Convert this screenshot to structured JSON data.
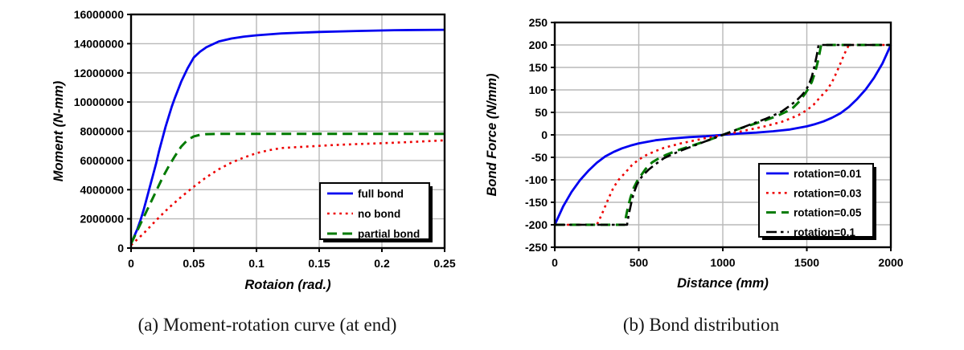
{
  "figure": {
    "captions": {
      "left": "(a) Moment-rotation curve (at end)",
      "right": "(b) Bond distribution"
    }
  },
  "colors": {
    "blue": "#0000f0",
    "red": "#ee0000",
    "green": "#007a00",
    "black": "#000000",
    "gridline": "#b8b8b8",
    "frame": "#000000",
    "background": "#ffffff"
  },
  "chart_data": [
    {
      "type": "line",
      "title": "",
      "xlabel": "Rotaion (rad.)",
      "ylabel": "Moment (N-mm)",
      "xlim": [
        0,
        0.25
      ],
      "ylim": [
        0,
        16000000
      ],
      "grid": true,
      "legend_position": "lower right",
      "xticks": [
        0,
        0.05,
        0.1,
        0.15,
        0.2,
        0.25
      ],
      "xtick_labels": [
        "0",
        "0.05",
        "0.1",
        "0.15",
        "0.2",
        "0.25"
      ],
      "yticks": [
        0,
        2000000,
        4000000,
        6000000,
        8000000,
        10000000,
        12000000,
        14000000,
        16000000
      ],
      "ytick_labels": [
        "0",
        "2000000",
        "4000000",
        "6000000",
        "8000000",
        "10000000",
        "12000000",
        "14000000",
        "16000000"
      ],
      "series": [
        {
          "name": "full bond",
          "color": "#0000f0",
          "style": "solid",
          "width": 2.8,
          "x": [
            0,
            0.0025,
            0.005,
            0.0075,
            0.01,
            0.0125,
            0.015,
            0.0175,
            0.02,
            0.0225,
            0.025,
            0.0275,
            0.03,
            0.0325,
            0.035,
            0.04,
            0.045,
            0.05,
            0.055,
            0.06,
            0.07,
            0.08,
            0.09,
            0.1,
            0.12,
            0.15,
            0.18,
            0.21,
            0.25
          ],
          "y": [
            300000,
            800000,
            1300000,
            1900000,
            2600000,
            3400000,
            4200000,
            5000000,
            5800000,
            6700000,
            7500000,
            8300000,
            9000000,
            9700000,
            10300000,
            11400000,
            12300000,
            13050000,
            13450000,
            13750000,
            14150000,
            14350000,
            14480000,
            14570000,
            14700000,
            14800000,
            14870000,
            14920000,
            14950000
          ]
        },
        {
          "name": "no bond",
          "color": "#ee0000",
          "style": "dotted",
          "width": 2.6,
          "x": [
            0,
            0.01,
            0.02,
            0.03,
            0.04,
            0.05,
            0.06,
            0.07,
            0.08,
            0.09,
            0.1,
            0.11,
            0.12,
            0.14,
            0.16,
            0.18,
            0.2,
            0.22,
            0.25
          ],
          "y": [
            200000,
            1000000,
            1900000,
            2750000,
            3500000,
            4200000,
            4850000,
            5400000,
            5850000,
            6200000,
            6500000,
            6700000,
            6850000,
            6950000,
            7050000,
            7120000,
            7180000,
            7250000,
            7380000
          ]
        },
        {
          "name": "partial bond",
          "color": "#007a00",
          "style": "dashed",
          "width": 3,
          "x": [
            0,
            0.005,
            0.01,
            0.015,
            0.02,
            0.025,
            0.03,
            0.035,
            0.04,
            0.045,
            0.05,
            0.055,
            0.06,
            0.07,
            0.08,
            0.1,
            0.15,
            0.2,
            0.25
          ],
          "y": [
            300000,
            1200000,
            2100000,
            3000000,
            3900000,
            4800000,
            5600000,
            6300000,
            6950000,
            7400000,
            7650000,
            7750000,
            7800000,
            7820000,
            7820000,
            7820000,
            7820000,
            7820000,
            7820000
          ]
        }
      ]
    },
    {
      "type": "line",
      "title": "",
      "xlabel": "Distance (mm)",
      "ylabel": "Bond Force (N/mm)",
      "xlim": [
        0,
        2000
      ],
      "ylim": [
        -250,
        250
      ],
      "grid": true,
      "legend_position": "lower right",
      "xticks": [
        0,
        500,
        1000,
        1500,
        2000
      ],
      "xtick_labels": [
        "0",
        "500",
        "1000",
        "1500",
        "2000"
      ],
      "yticks": [
        -250,
        -200,
        -150,
        -100,
        -50,
        0,
        50,
        100,
        150,
        200,
        250
      ],
      "ytick_labels": [
        "-250",
        "-200",
        "-150",
        "-100",
        "-50",
        "0",
        "50",
        "100",
        "150",
        "200",
        "250"
      ],
      "series": [
        {
          "name": "rotation=0.01",
          "color": "#0000f0",
          "style": "solid",
          "width": 2.8,
          "x": [
            0,
            50,
            100,
            150,
            200,
            250,
            300,
            350,
            400,
            450,
            500,
            600,
            700,
            800,
            900,
            1000,
            1100,
            1200,
            1300,
            1400,
            1500,
            1550,
            1600,
            1650,
            1700,
            1750,
            1800,
            1850,
            1900,
            1950,
            2000
          ],
          "y": [
            -200,
            -159,
            -127,
            -101,
            -80,
            -62,
            -48,
            -38,
            -30,
            -24,
            -19,
            -12,
            -8,
            -5,
            -3,
            0,
            3,
            5,
            8,
            12,
            19,
            24,
            30,
            38,
            48,
            62,
            80,
            101,
            127,
            159,
            200
          ]
        },
        {
          "name": "rotation=0.03",
          "color": "#ee0000",
          "style": "dotted",
          "width": 2.6,
          "x": [
            0,
            250,
            270,
            290,
            310,
            330,
            350,
            380,
            420,
            460,
            500,
            550,
            600,
            650,
            700,
            750,
            800,
            850,
            900,
            950,
            1000,
            1050,
            1100,
            1150,
            1200,
            1250,
            1300,
            1350,
            1400,
            1450,
            1500,
            1540,
            1580,
            1620,
            1650,
            1670,
            1690,
            1710,
            1730,
            1750,
            2000
          ],
          "y": [
            -200,
            -200,
            -185,
            -168,
            -150,
            -133,
            -117,
            -100,
            -84,
            -67,
            -55,
            -44,
            -36,
            -29,
            -24,
            -19,
            -15,
            -11,
            -7,
            -4,
            0,
            4,
            7,
            11,
            15,
            19,
            24,
            29,
            36,
            44,
            55,
            67,
            84,
            100,
            117,
            133,
            150,
            168,
            185,
            200,
            200
          ]
        },
        {
          "name": "rotation=0.05",
          "color": "#007a00",
          "style": "dashed",
          "width": 3,
          "x": [
            0,
            415,
            425,
            435,
            450,
            470,
            490,
            510,
            540,
            580,
            620,
            660,
            700,
            750,
            800,
            850,
            900,
            950,
            1000,
            1050,
            1100,
            1150,
            1200,
            1250,
            1300,
            1340,
            1380,
            1420,
            1460,
            1490,
            1510,
            1530,
            1550,
            1565,
            1575,
            1585,
            2000
          ],
          "y": [
            -200,
            -200,
            -180,
            -162,
            -140,
            -118,
            -103,
            -92,
            -76,
            -61,
            -52,
            -45,
            -39,
            -32,
            -26,
            -20,
            -14,
            -7,
            0,
            7,
            14,
            20,
            26,
            32,
            39,
            45,
            52,
            61,
            76,
            92,
            103,
            118,
            140,
            162,
            180,
            200,
            200
          ]
        },
        {
          "name": "rotation=0.1",
          "color": "#000000",
          "style": "dashdot",
          "width": 2.6,
          "x": [
            0,
            430,
            440,
            455,
            470,
            490,
            510,
            530,
            560,
            600,
            650,
            700,
            750,
            800,
            850,
            900,
            950,
            1000,
            1050,
            1100,
            1150,
            1200,
            1250,
            1300,
            1350,
            1400,
            1440,
            1470,
            1490,
            1510,
            1530,
            1545,
            1560,
            1570,
            2000
          ],
          "y": [
            -200,
            -200,
            -178,
            -152,
            -130,
            -110,
            -97,
            -88,
            -77,
            -65,
            -52,
            -43,
            -35,
            -28,
            -21,
            -14,
            -7,
            0,
            7,
            14,
            21,
            28,
            35,
            43,
            52,
            65,
            77,
            88,
            97,
            110,
            130,
            152,
            178,
            200,
            200
          ]
        }
      ]
    }
  ]
}
